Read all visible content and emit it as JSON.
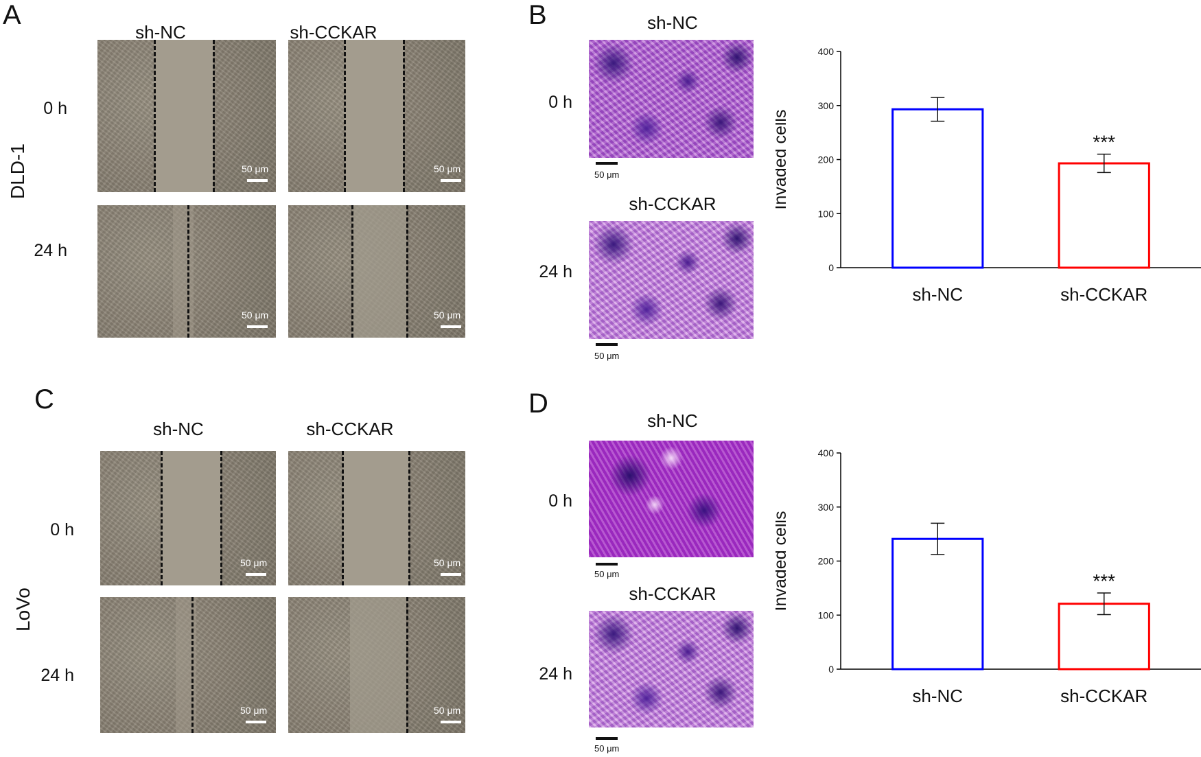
{
  "panels": {
    "A": "A",
    "B": "B",
    "C": "C",
    "D": "D"
  },
  "cell_lines": {
    "top": "DLD-1",
    "bottom": "LoVo"
  },
  "columns": {
    "nc": "sh-NC",
    "ckar": "sh-CCKAR"
  },
  "rows": {
    "t0": "0 h",
    "t24": "24 h"
  },
  "scale_label": "50 μm",
  "colors": {
    "nc": "#0000ff",
    "ckar": "#ff0000",
    "axis": "#000000"
  },
  "chart_data": [
    {
      "type": "bar",
      "panel": "B",
      "categories": [
        "sh-NC",
        "sh-CCKAR"
      ],
      "values": [
        293,
        193
      ],
      "errors": [
        22,
        17
      ],
      "significance": [
        "",
        "***"
      ],
      "ylabel": "Invaded cells",
      "ylim": [
        0,
        400
      ],
      "yticks": [
        0,
        100,
        200,
        300,
        400
      ]
    },
    {
      "type": "bar",
      "panel": "D",
      "categories": [
        "sh-NC",
        "sh-CCKAR"
      ],
      "values": [
        241,
        121
      ],
      "errors": [
        29,
        20
      ],
      "significance": [
        "",
        "***"
      ],
      "ylabel": "Invaded cells",
      "ylim": [
        0,
        400
      ],
      "yticks": [
        0,
        100,
        200,
        300,
        400
      ]
    }
  ]
}
